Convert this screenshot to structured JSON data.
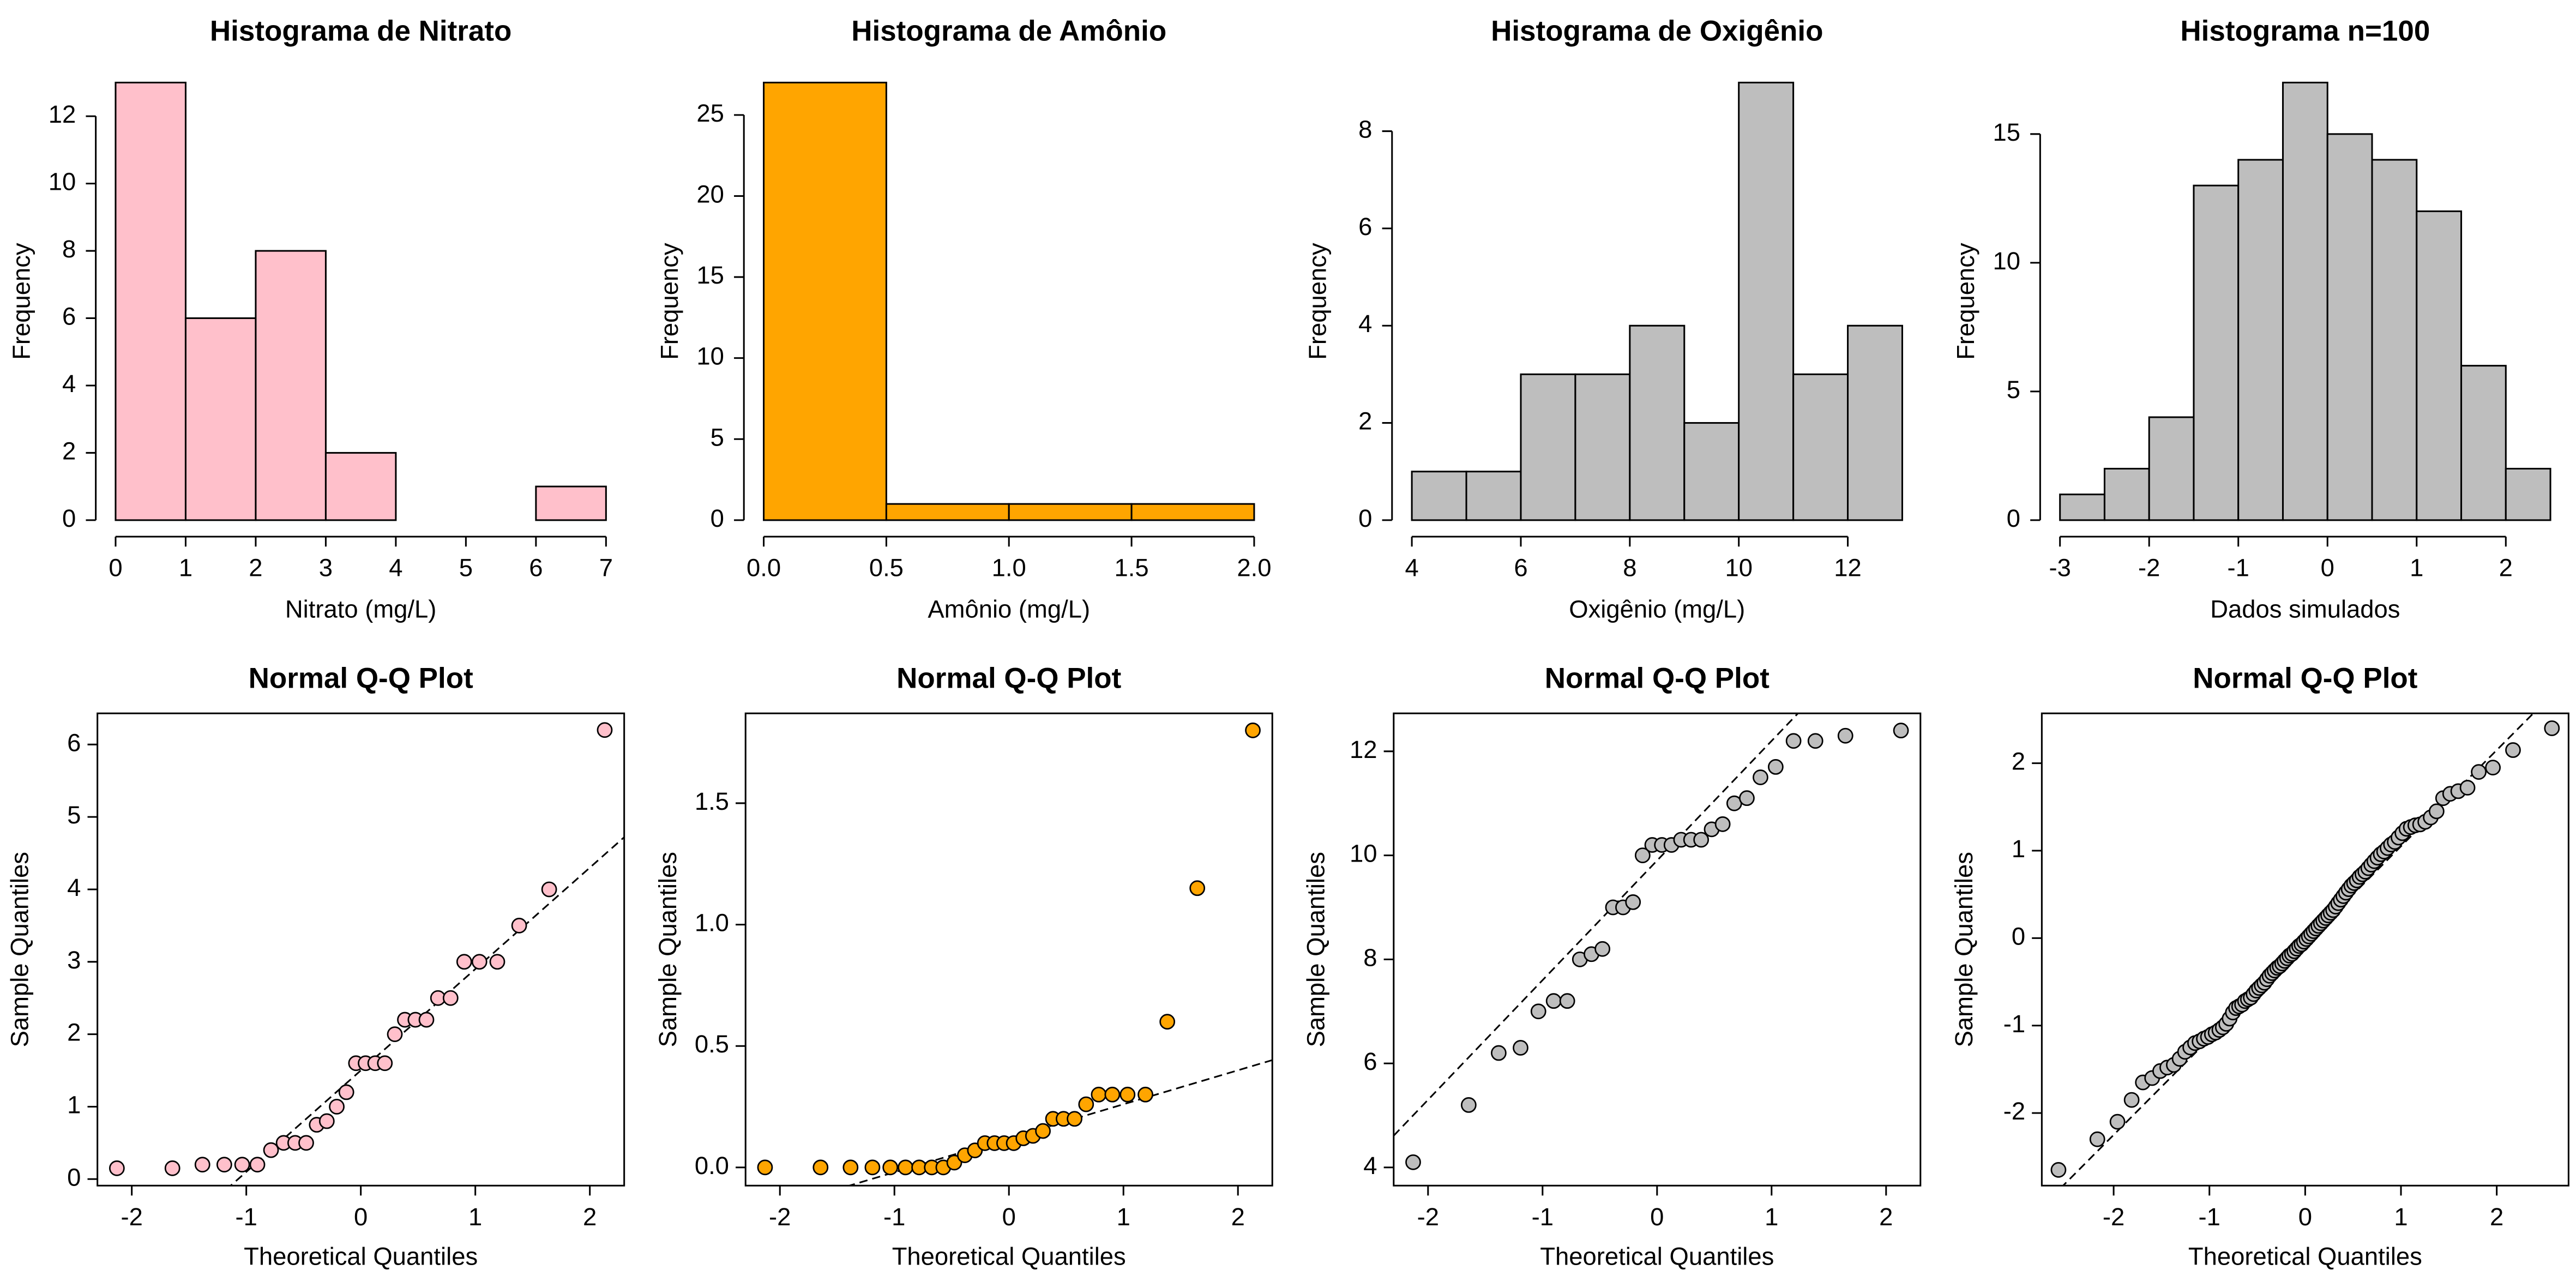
{
  "chart_data": [
    {
      "type": "histogram",
      "title": "Histograma de Nitrato",
      "xlabel": "Nitrato (mg/L)",
      "ylabel": "Frequency",
      "color": "#ffc0cb",
      "bins": [
        0,
        1,
        2,
        3,
        4,
        5,
        6,
        7
      ],
      "counts": [
        13,
        6,
        8,
        2,
        0,
        0,
        1
      ],
      "xlim": [
        0,
        7
      ],
      "ylim": [
        0,
        13
      ],
      "xticks": [
        0,
        1,
        2,
        3,
        4,
        5,
        6,
        7
      ],
      "yticks": [
        0,
        2,
        4,
        6,
        8,
        10,
        12
      ]
    },
    {
      "type": "histogram",
      "title": "Histograma de Amônio",
      "xlabel": "Amônio (mg/L)",
      "ylabel": "Frequency",
      "color": "#ffa500",
      "bins": [
        0,
        0.5,
        1,
        1.5,
        2
      ],
      "counts": [
        27,
        1,
        1,
        1
      ],
      "xlim": [
        0,
        2
      ],
      "ylim": [
        0,
        27
      ],
      "xticks": [
        {
          "value": 0,
          "label": "0.0"
        },
        0.5,
        {
          "value": 1,
          "label": "1.0"
        },
        1.5,
        {
          "value": 2,
          "label": "2.0"
        }
      ],
      "yticks": [
        0,
        5,
        10,
        15,
        20,
        25
      ]
    },
    {
      "type": "histogram",
      "title": "Histograma de Oxigênio",
      "xlabel": "Oxigênio (mg/L)",
      "ylabel": "Frequency",
      "color": "#bebebe",
      "bins": [
        4,
        5,
        6,
        7,
        8,
        9,
        10,
        11,
        12,
        13
      ],
      "counts": [
        1,
        1,
        3,
        3,
        4,
        2,
        9,
        3,
        4
      ],
      "xlim": [
        4,
        13
      ],
      "ylim": [
        0,
        9
      ],
      "xticks": [
        4,
        6,
        8,
        10,
        12
      ],
      "yticks": [
        0,
        2,
        4,
        6,
        8
      ]
    },
    {
      "type": "histogram",
      "title": "Histograma n=100",
      "xlabel": "Dados simulados",
      "ylabel": "Frequency",
      "color": "#bebebe",
      "bins": [
        -3,
        -2.5,
        -2,
        -1.5,
        -1,
        -0.5,
        0,
        0.5,
        1,
        1.5,
        2,
        2.5
      ],
      "counts": [
        1,
        2,
        4,
        13,
        14,
        17,
        15,
        14,
        12,
        6,
        2
      ],
      "xlim": [
        -3,
        2.5
      ],
      "ylim": [
        0,
        17
      ],
      "xticks": [
        -3,
        -2,
        -1,
        0,
        1,
        2
      ],
      "yticks": [
        0,
        5,
        10,
        15
      ]
    },
    {
      "type": "qq",
      "title": "Normal Q-Q Plot",
      "xlabel": "Theoretical Quantiles",
      "ylabel": "Sample Quantiles",
      "color": "#ffc0cb",
      "x": [
        -2.13,
        -1.645,
        -1.383,
        -1.192,
        -1.036,
        -0.903,
        -0.784,
        -0.674,
        -0.573,
        -0.477,
        -0.385,
        -0.297,
        -0.21,
        -0.126,
        -0.042,
        0.042,
        0.126,
        0.21,
        0.297,
        0.385,
        0.477,
        0.573,
        0.674,
        0.784,
        0.903,
        1.036,
        1.192,
        1.383,
        1.645,
        2.13
      ],
      "y": [
        0.15,
        0.15,
        0.2,
        0.2,
        0.2,
        0.2,
        0.4,
        0.5,
        0.5,
        0.5,
        0.75,
        0.8,
        1.0,
        1.2,
        1.6,
        1.6,
        1.6,
        1.6,
        2.0,
        2.2,
        2.2,
        2.2,
        2.5,
        2.5,
        3.0,
        3.0,
        3.0,
        3.5,
        4.0,
        6.2
      ],
      "reference_line": {
        "intercept": 1.5,
        "slope": 1.4
      },
      "xlim": [
        -2.3,
        2.3
      ],
      "ylim": [
        -0.09,
        6.43
      ],
      "xticks": [
        -2,
        -1,
        0,
        1,
        2
      ],
      "yticks": [
        0,
        1,
        2,
        3,
        4,
        5,
        6
      ]
    },
    {
      "type": "qq",
      "title": "Normal Q-Q Plot",
      "xlabel": "Theoretical Quantiles",
      "ylabel": "Sample Quantiles",
      "color": "#ffa500",
      "x": [
        -2.13,
        -1.645,
        -1.383,
        -1.192,
        -1.036,
        -0.903,
        -0.784,
        -0.674,
        -0.573,
        -0.477,
        -0.385,
        -0.297,
        -0.21,
        -0.126,
        -0.042,
        0.042,
        0.126,
        0.21,
        0.297,
        0.385,
        0.477,
        0.573,
        0.674,
        0.784,
        0.903,
        1.036,
        1.192,
        1.383,
        1.645,
        2.13
      ],
      "y": [
        0,
        0,
        0,
        0,
        0,
        0,
        0,
        0,
        0,
        0.02,
        0.05,
        0.07,
        0.1,
        0.1,
        0.1,
        0.1,
        0.12,
        0.13,
        0.15,
        0.2,
        0.2,
        0.2,
        0.26,
        0.3,
        0.3,
        0.3,
        0.3,
        0.6,
        1.15,
        1.8
      ],
      "reference_line": {
        "intercept": 0.12,
        "slope": 0.14
      },
      "xlim": [
        -2.3,
        2.3
      ],
      "ylim": [
        -0.075,
        1.87
      ],
      "xticks": [
        -2,
        -1,
        0,
        1,
        2
      ],
      "yticks": [
        {
          "value": 0,
          "label": "0.0"
        },
        0.5,
        {
          "value": 1,
          "label": "1.0"
        },
        1.5
      ]
    },
    {
      "type": "qq",
      "title": "Normal Q-Q Plot",
      "xlabel": "Theoretical Quantiles",
      "ylabel": "Sample Quantiles",
      "color": "#bebebe",
      "x": [
        -2.13,
        -1.645,
        -1.383,
        -1.192,
        -1.036,
        -0.903,
        -0.784,
        -0.674,
        -0.573,
        -0.477,
        -0.385,
        -0.297,
        -0.21,
        -0.126,
        -0.042,
        0.042,
        0.126,
        0.21,
        0.297,
        0.385,
        0.477,
        0.573,
        0.674,
        0.784,
        0.903,
        1.036,
        1.192,
        1.383,
        1.645,
        2.13
      ],
      "y": [
        4.1,
        5.2,
        6.2,
        6.3,
        7.0,
        7.2,
        7.2,
        8.0,
        8.1,
        8.2,
        9.0,
        9.0,
        9.1,
        10.0,
        10.2,
        10.2,
        10.2,
        10.3,
        10.3,
        10.3,
        10.5,
        10.6,
        11.0,
        11.1,
        11.5,
        11.7,
        12.2,
        12.2,
        12.3,
        12.4
      ],
      "reference_line": {
        "intercept": 9.9,
        "slope": 2.3
      },
      "xlim": [
        -2.3,
        2.3
      ],
      "ylim": [
        3.65,
        12.73
      ],
      "xticks": [
        -2,
        -1,
        0,
        1,
        2
      ],
      "yticks": [
        4,
        6,
        8,
        10,
        12
      ]
    },
    {
      "type": "qq",
      "title": "Normal Q-Q Plot",
      "xlabel": "Theoretical Quantiles",
      "ylabel": "Sample Quantiles",
      "color": "#bebebe",
      "x": [
        -2.576,
        -2.17,
        -1.96,
        -1.812,
        -1.695,
        -1.598,
        -1.514,
        -1.44,
        -1.372,
        -1.311,
        -1.254,
        -1.2,
        -1.15,
        -1.103,
        -1.058,
        -1.015,
        -0.974,
        -0.935,
        -0.896,
        -0.86,
        -0.824,
        -0.789,
        -0.755,
        -0.722,
        -0.69,
        -0.659,
        -0.628,
        -0.598,
        -0.568,
        -0.539,
        -0.51,
        -0.482,
        -0.454,
        -0.426,
        -0.399,
        -0.372,
        -0.345,
        -0.319,
        -0.292,
        -0.266,
        -0.24,
        -0.215,
        -0.189,
        -0.164,
        -0.138,
        -0.113,
        -0.088,
        -0.063,
        -0.038,
        -0.013,
        0.013,
        0.038,
        0.063,
        0.088,
        0.113,
        0.138,
        0.164,
        0.189,
        0.215,
        0.24,
        0.266,
        0.292,
        0.319,
        0.345,
        0.372,
        0.399,
        0.426,
        0.454,
        0.482,
        0.51,
        0.539,
        0.568,
        0.598,
        0.628,
        0.659,
        0.69,
        0.722,
        0.755,
        0.789,
        0.824,
        0.86,
        0.896,
        0.935,
        0.974,
        1.015,
        1.058,
        1.103,
        1.15,
        1.2,
        1.254,
        1.311,
        1.372,
        1.44,
        1.514,
        1.598,
        1.695,
        1.812,
        1.96,
        2.17,
        2.576
      ],
      "y": [
        -2.65,
        -2.3,
        -2.1,
        -1.85,
        -1.65,
        -1.6,
        -1.52,
        -1.48,
        -1.45,
        -1.38,
        -1.3,
        -1.25,
        -1.2,
        -1.18,
        -1.15,
        -1.13,
        -1.1,
        -1.08,
        -1.05,
        -1.02,
        -0.98,
        -0.92,
        -0.85,
        -0.8,
        -0.78,
        -0.76,
        -0.72,
        -0.7,
        -0.68,
        -0.64,
        -0.6,
        -0.57,
        -0.54,
        -0.51,
        -0.47,
        -0.43,
        -0.4,
        -0.37,
        -0.34,
        -0.32,
        -0.29,
        -0.26,
        -0.23,
        -0.2,
        -0.18,
        -0.15,
        -0.12,
        -0.09,
        -0.07,
        -0.04,
        -0.01,
        0.02,
        0.05,
        0.08,
        0.11,
        0.14,
        0.17,
        0.2,
        0.23,
        0.26,
        0.29,
        0.32,
        0.36,
        0.4,
        0.44,
        0.48,
        0.52,
        0.56,
        0.6,
        0.63,
        0.66,
        0.7,
        0.73,
        0.76,
        0.8,
        0.84,
        0.88,
        0.92,
        0.96,
        0.99,
        1.03,
        1.07,
        1.1,
        1.15,
        1.2,
        1.25,
        1.27,
        1.29,
        1.3,
        1.33,
        1.38,
        1.45,
        1.6,
        1.65,
        1.68,
        1.72,
        1.9,
        1.95,
        2.15,
        2.4
      ],
      "reference_line": {
        "intercept": -0.05,
        "slope": 1.1
      },
      "xlim": [
        -2.75,
        2.75
      ],
      "ylim": [
        -2.83,
        2.57
      ],
      "xticks": [
        -2,
        -1,
        0,
        1,
        2
      ],
      "yticks": [
        -2,
        -1,
        0,
        1,
        2
      ]
    }
  ]
}
